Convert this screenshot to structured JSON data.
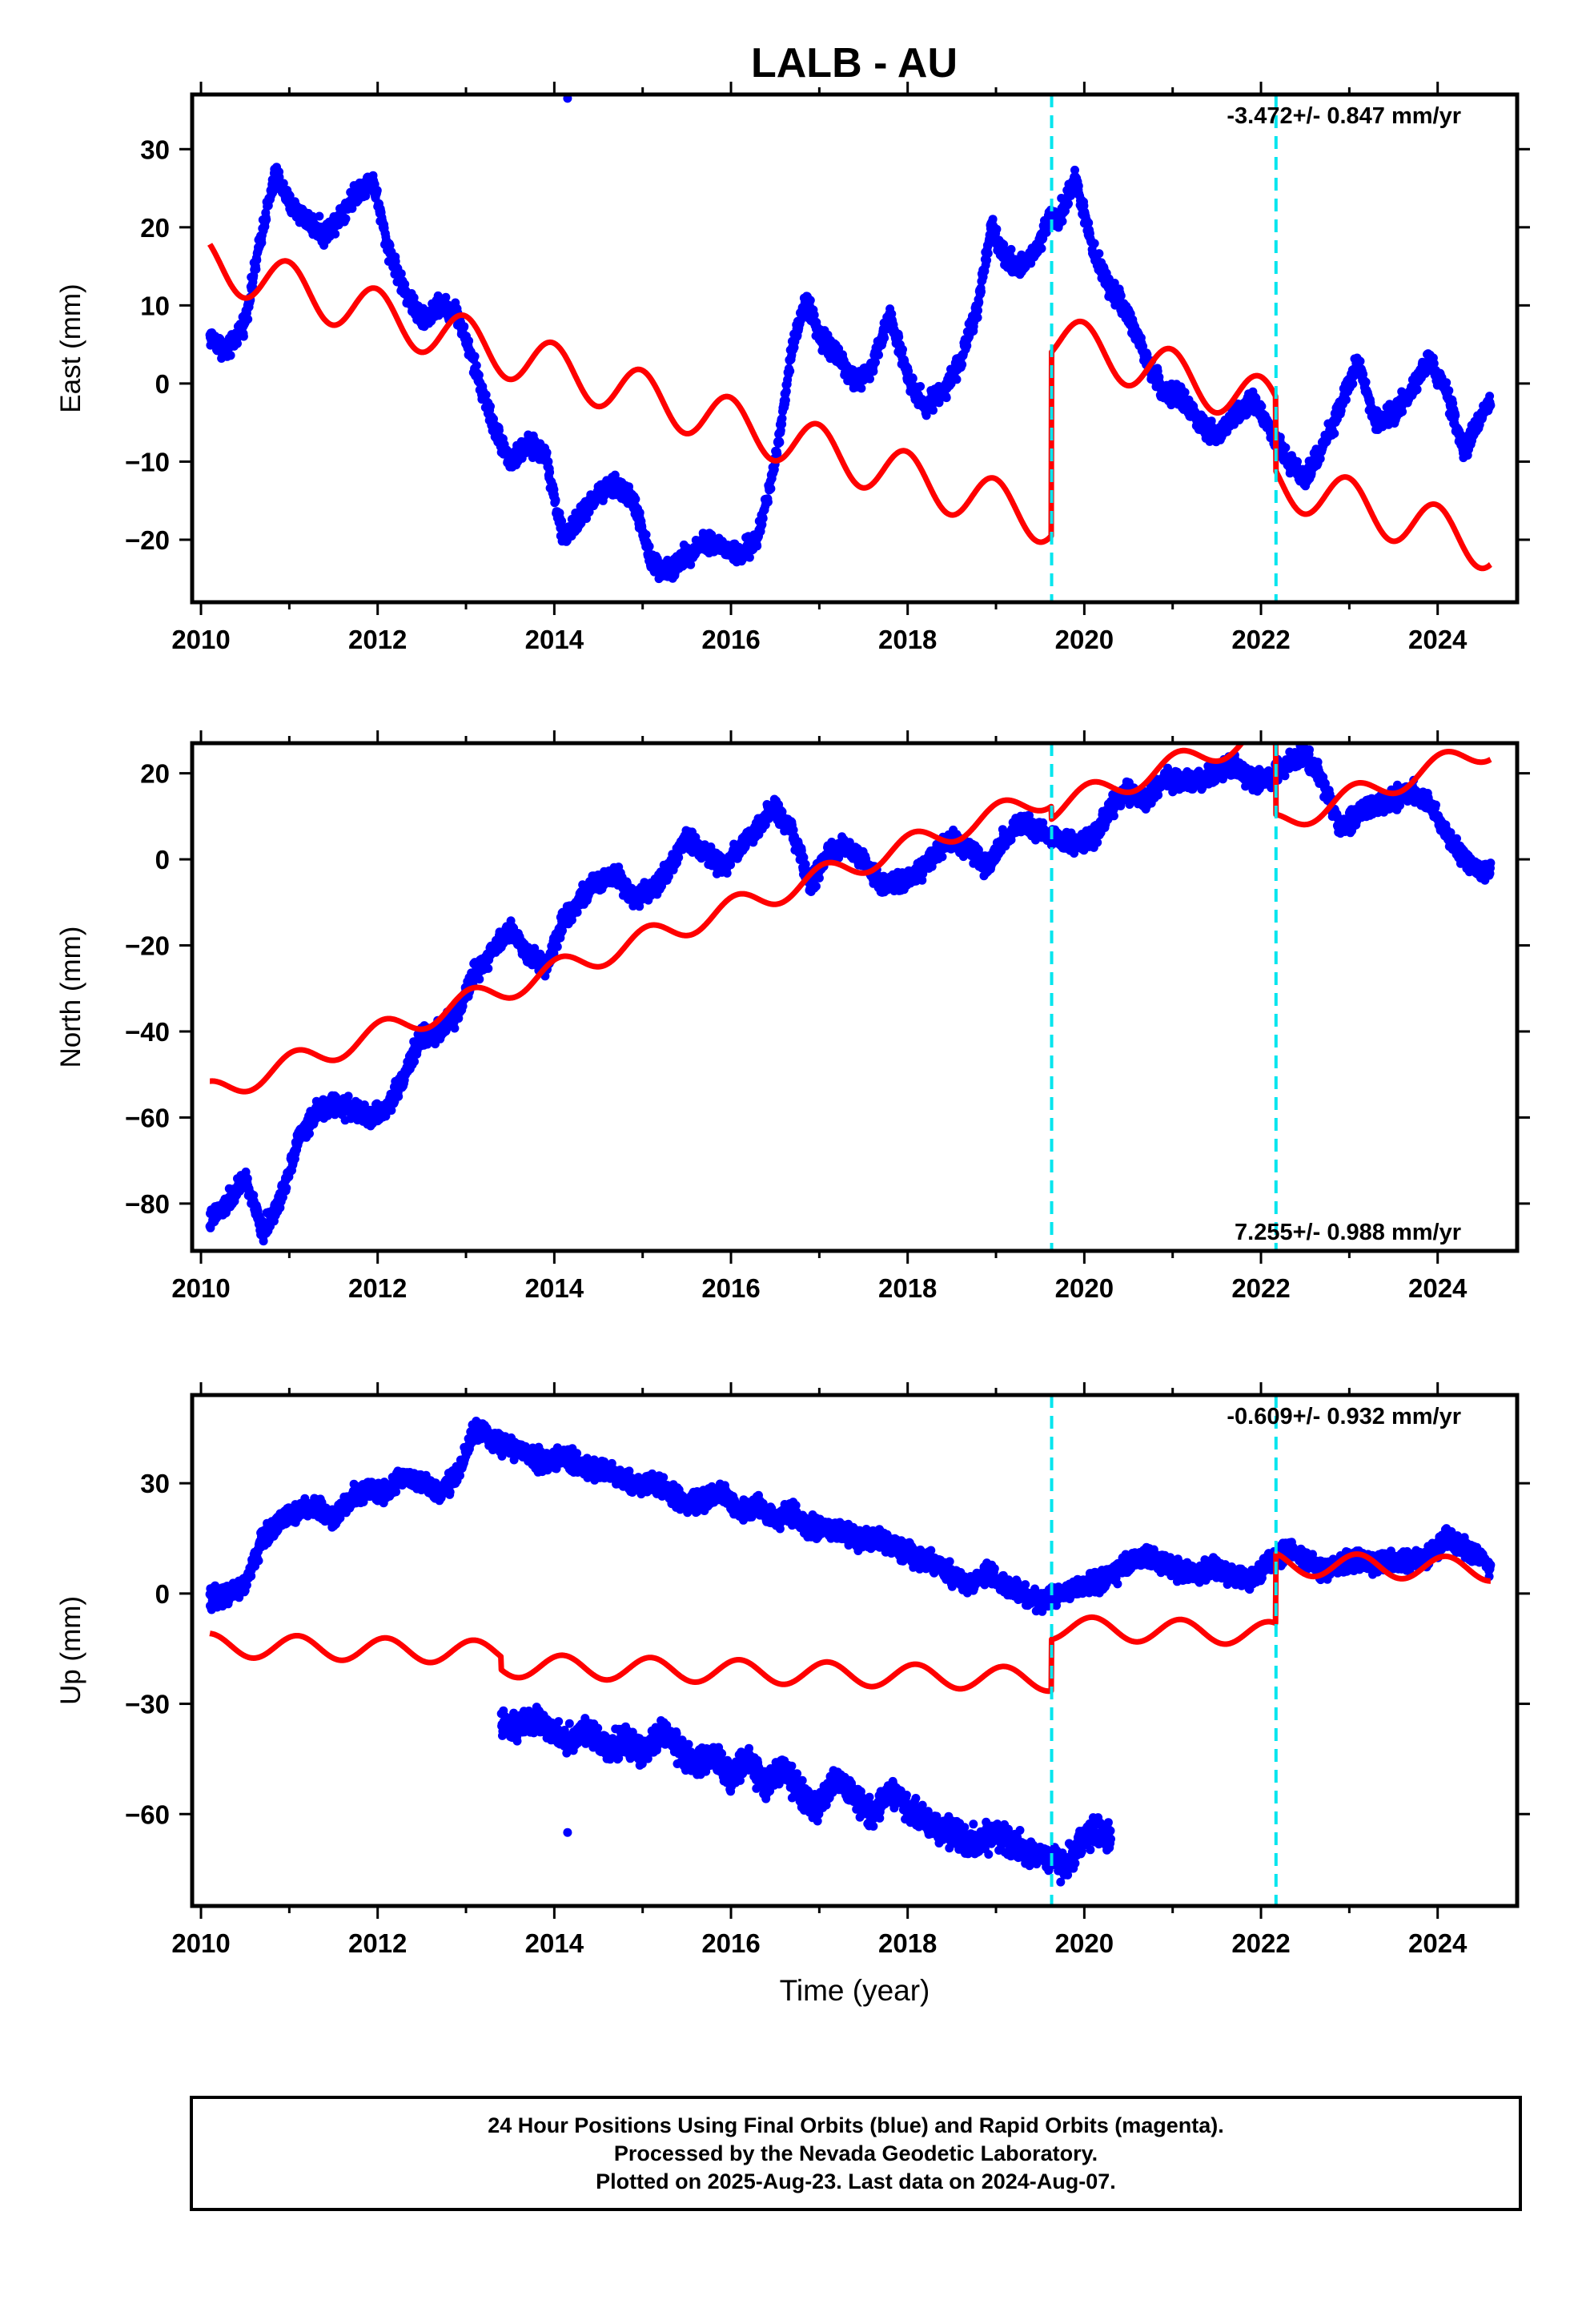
{
  "title": "LALB - AU",
  "chart_data": [
    {
      "type": "scatter",
      "panel": "East",
      "ylabel": "East (mm)",
      "xlabel": "",
      "xlim": [
        2009.9,
        2024.9
      ],
      "ylim": [
        -28,
        37
      ],
      "xticks": [
        2010,
        2012,
        2014,
        2016,
        2018,
        2020,
        2022,
        2024
      ],
      "yticks": [
        -20,
        -10,
        0,
        10,
        20,
        30
      ],
      "rate_label": "-3.472+/- 0.847 mm/yr",
      "rate_label_position": "top-right",
      "steps": [
        2019.63,
        2022.17
      ],
      "observations": {
        "color": "#0000ff",
        "x": [
          2010.1,
          2010.3,
          2010.5,
          2010.7,
          2010.85,
          2011.0,
          2011.2,
          2011.4,
          2011.6,
          2011.8,
          2011.95,
          2012.1,
          2012.3,
          2012.5,
          2012.7,
          2012.9,
          2013.1,
          2013.3,
          2013.5,
          2013.7,
          2013.9,
          2014.1,
          2014.3,
          2014.5,
          2014.7,
          2014.9,
          2015.1,
          2015.3,
          2015.5,
          2015.7,
          2015.9,
          2016.1,
          2016.3,
          2016.5,
          2016.7,
          2016.85,
          2017.0,
          2017.2,
          2017.4,
          2017.6,
          2017.8,
          2018.0,
          2018.2,
          2018.4,
          2018.6,
          2018.8,
          2018.95,
          2019.1,
          2019.3,
          2019.5,
          2019.62,
          2019.7,
          2019.9,
          2020.1,
          2020.3,
          2020.5,
          2020.7,
          2020.9,
          2021.1,
          2021.3,
          2021.5,
          2021.7,
          2021.9,
          2022.1,
          2022.3,
          2022.5,
          2022.7,
          2022.9,
          2023.1,
          2023.3,
          2023.5,
          2023.7,
          2023.9,
          2024.1,
          2024.3,
          2024.5,
          2024.6
        ],
        "y": [
          6,
          4,
          8,
          20,
          27,
          23,
          21,
          19,
          22,
          25,
          26,
          18,
          12,
          8,
          10,
          9,
          2,
          -5,
          -10,
          -8,
          -9,
          -20,
          -17,
          -14,
          -13,
          -15,
          -23,
          -24,
          -22,
          -20,
          -21,
          -22,
          -20,
          -10,
          5,
          11,
          6,
          4,
          0,
          2,
          9,
          1,
          -3,
          -1,
          3,
          10,
          20,
          16,
          15,
          18,
          22,
          21,
          26,
          17,
          12,
          9,
          3,
          -1,
          -2,
          -5,
          -7,
          -4,
          -2,
          -6,
          -10,
          -12,
          -8,
          -3,
          3,
          -5,
          -4,
          -1,
          3,
          -1,
          -9,
          -4,
          -2
        ]
      },
      "model": {
        "color": "#ff0000",
        "offset_at_2010": 15.85,
        "rate": -3.472,
        "amplitude": 3.2,
        "phase": 1.7,
        "jumps": [
          {
            "at": 2019.63,
            "size": 23.5
          },
          {
            "at": 2022.17,
            "size": -9.5
          }
        ],
        "x_range": [
          2010.1,
          2024.6
        ]
      },
      "outliers": {
        "x": [
          2014.15
        ],
        "y": [
          36.5
        ]
      }
    },
    {
      "type": "scatter",
      "panel": "North",
      "ylabel": "North (mm)",
      "xlabel": "",
      "xlim": [
        2009.9,
        2024.9
      ],
      "ylim": [
        -91,
        27
      ],
      "xticks": [
        2010,
        2012,
        2014,
        2016,
        2018,
        2020,
        2022,
        2024
      ],
      "yticks": [
        -80,
        -60,
        -40,
        -20,
        0,
        20
      ],
      "rate_label": "7.255+/- 0.988 mm/yr",
      "rate_label_position": "bottom-right",
      "steps": [
        2019.63,
        2022.17
      ],
      "observations": {
        "color": "#0000ff",
        "x": [
          2010.1,
          2010.3,
          2010.5,
          2010.7,
          2010.9,
          2011.1,
          2011.3,
          2011.5,
          2011.7,
          2011.9,
          2012.1,
          2012.3,
          2012.5,
          2012.7,
          2012.9,
          2013.1,
          2013.3,
          2013.5,
          2013.7,
          2013.9,
          2014.1,
          2014.3,
          2014.5,
          2014.7,
          2014.9,
          2015.1,
          2015.3,
          2015.5,
          2015.7,
          2015.9,
          2016.1,
          2016.3,
          2016.5,
          2016.7,
          2016.9,
          2017.1,
          2017.3,
          2017.5,
          2017.7,
          2017.9,
          2018.1,
          2018.3,
          2018.5,
          2018.7,
          2018.9,
          2019.1,
          2019.3,
          2019.5,
          2019.7,
          2019.9,
          2020.1,
          2020.3,
          2020.5,
          2020.7,
          2020.9,
          2021.1,
          2021.3,
          2021.5,
          2021.7,
          2021.9,
          2022.1,
          2022.3,
          2022.5,
          2022.7,
          2022.9,
          2023.1,
          2023.3,
          2023.5,
          2023.7,
          2023.9,
          2024.1,
          2024.3,
          2024.5,
          2024.6
        ],
        "y": [
          -84,
          -80,
          -74,
          -87,
          -79,
          -65,
          -59,
          -57,
          -58,
          -60,
          -58,
          -50,
          -41,
          -40,
          -36,
          -26,
          -21,
          -16,
          -22,
          -25,
          -14,
          -9,
          -5,
          -3,
          -9,
          -7,
          -2,
          5,
          2,
          -2,
          3,
          7,
          12,
          6,
          -6,
          1,
          3,
          0,
          -6,
          -5,
          -4,
          1,
          5,
          2,
          -2,
          5,
          8,
          7,
          5,
          3,
          5,
          12,
          16,
          13,
          19,
          18,
          18,
          20,
          22,
          18,
          19,
          22,
          24,
          18,
          7,
          11,
          13,
          14,
          16,
          13,
          6,
          0,
          -3,
          -2
        ]
      },
      "model": {
        "color": "#ff0000",
        "offset_at_2010": -55.0,
        "rate": 7.255,
        "amplitude": 2.8,
        "phase": 1.2,
        "jumps": [
          {
            "at": 2019.63,
            "size": -3.0
          },
          {
            "at": 2022.17,
            "size": -22.0
          }
        ],
        "x_range": [
          2010.1,
          2024.6
        ]
      },
      "outliers": {
        "x": [],
        "y": []
      }
    },
    {
      "type": "scatter",
      "panel": "Up",
      "ylabel": "Up (mm)",
      "xlabel": "Time (year)",
      "xlim": [
        2009.9,
        2024.9
      ],
      "ylim": [
        -85,
        54
      ],
      "xticks": [
        2010,
        2012,
        2014,
        2016,
        2018,
        2020,
        2022,
        2024
      ],
      "yticks": [
        -60,
        -30,
        0,
        30
      ],
      "rate_label": "-0.609+/- 0.932 mm/yr",
      "rate_label_position": "top-right",
      "steps": [
        2019.63,
        2022.17
      ],
      "observations": {
        "color": "#0000ff",
        "x": [
          2010.1,
          2010.3,
          2010.5,
          2010.7,
          2010.9,
          2011.1,
          2011.3,
          2011.5,
          2011.7,
          2011.9,
          2012.1,
          2012.3,
          2012.5,
          2012.7,
          2012.9,
          2013.1,
          2013.3,
          2013.5,
          2013.7,
          2013.9,
          2014.1,
          2014.3,
          2014.5,
          2014.7,
          2014.9,
          2015.1,
          2015.3,
          2015.5,
          2015.7,
          2015.9,
          2016.1,
          2016.3,
          2016.5,
          2016.7,
          2016.9,
          2017.1,
          2017.3,
          2017.5,
          2017.7,
          2017.9,
          2018.1,
          2018.3,
          2018.5,
          2018.7,
          2018.9,
          2019.1,
          2019.3,
          2019.5,
          2020.3,
          2020.5,
          2020.7,
          2020.9,
          2021.1,
          2021.3,
          2021.5,
          2021.7,
          2021.9,
          2022.1,
          2022.3,
          2022.5,
          2022.7,
          2022.9,
          2023.1,
          2023.3,
          2023.5,
          2023.7,
          2023.9,
          2024.1,
          2024.3,
          2024.5,
          2024.6
        ],
        "y": [
          -2,
          0,
          2,
          15,
          20,
          22,
          24,
          20,
          26,
          28,
          28,
          32,
          30,
          28,
          32,
          45,
          42,
          40,
          38,
          36,
          37,
          35,
          34,
          32,
          30,
          30,
          28,
          24,
          26,
          28,
          22,
          24,
          20,
          22,
          18,
          18,
          16,
          14,
          15,
          12,
          10,
          8,
          5,
          2,
          6,
          2,
          0,
          -2,
          5,
          8,
          10,
          8,
          6,
          5,
          7,
          5,
          4,
          9,
          12,
          10,
          6,
          8,
          9,
          8,
          9,
          9,
          10,
          15,
          12,
          10,
          6
        ]
      },
      "observations_lower": {
        "color": "#0000ff",
        "x": [
          2013.4,
          2013.6,
          2013.8,
          2014.0,
          2014.2,
          2014.4,
          2014.6,
          2014.8,
          2015.0,
          2015.2,
          2015.4,
          2015.6,
          2015.8,
          2016.0,
          2016.2,
          2016.4,
          2016.6,
          2016.8,
          2017.0,
          2017.2,
          2017.4,
          2017.6,
          2017.8,
          2018.0,
          2018.2,
          2018.4,
          2018.6,
          2018.8,
          2019.0,
          2019.2,
          2019.4,
          2019.6,
          2019.8,
          2020.0,
          2020.2,
          2020.3
        ],
        "y": [
          -35,
          -36,
          -34,
          -38,
          -40,
          -37,
          -42,
          -40,
          -44,
          -38,
          -42,
          -46,
          -44,
          -50,
          -45,
          -52,
          -48,
          -55,
          -58,
          -50,
          -55,
          -60,
          -54,
          -58,
          -62,
          -64,
          -66,
          -68,
          -65,
          -68,
          -70,
          -72,
          -74,
          -66,
          -65,
          -67
        ]
      },
      "model": {
        "color": "#ff0000",
        "offset_at_2010": -14.0,
        "rate": -0.609,
        "amplitude": 3.2,
        "phase": 1.0,
        "jumps": [
          {
            "at": 2013.4,
            "size": -3.5
          },
          {
            "at": 2019.63,
            "size": 14.0
          },
          {
            "at": 2022.17,
            "size": 19.0
          }
        ],
        "x_range": [
          2010.1,
          2024.6
        ]
      },
      "outliers": {
        "x": [
          2014.15
        ],
        "y": [
          -65
        ]
      }
    }
  ],
  "footer": {
    "line1": "24 Hour Positions Using Final Orbits (blue) and Rapid Orbits (magenta).",
    "line2": "Processed by the Nevada Geodetic Laboratory.",
    "line3": "Plotted on 2025-Aug-23. Last data on 2024-Aug-07."
  }
}
